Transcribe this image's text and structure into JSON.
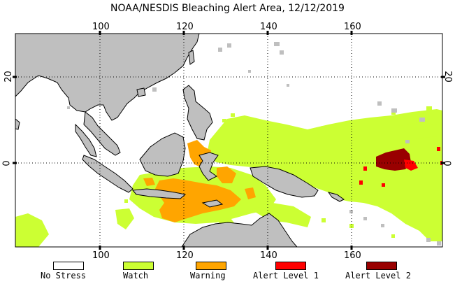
{
  "map": {
    "title": "NOAA/NESDIS Bleaching Alert Area, 12/12/2019",
    "lon_ticks_top": [
      "100",
      "120",
      "140",
      "160"
    ],
    "lon_ticks_bottom": [
      "100",
      "120",
      "140",
      "160"
    ],
    "lat_ticks_left": [
      "20",
      "0"
    ],
    "lat_ticks_right": [
      "20",
      "0"
    ],
    "colors": {
      "land": "#bfbfbf",
      "no_stress": "#ffffff",
      "watch": "#ccff33",
      "warning": "#ffa500",
      "alert1": "#ff0000",
      "alert2": "#990000"
    }
  },
  "legend": {
    "items": [
      {
        "label": "No Stress",
        "color": "#ffffff"
      },
      {
        "label": "Watch",
        "color": "#ccff33"
      },
      {
        "label": "Warning",
        "color": "#ffa500"
      },
      {
        "label": "Alert Level 1",
        "color": "#ff0000"
      },
      {
        "label": "Alert Level 2",
        "color": "#990000"
      }
    ]
  }
}
